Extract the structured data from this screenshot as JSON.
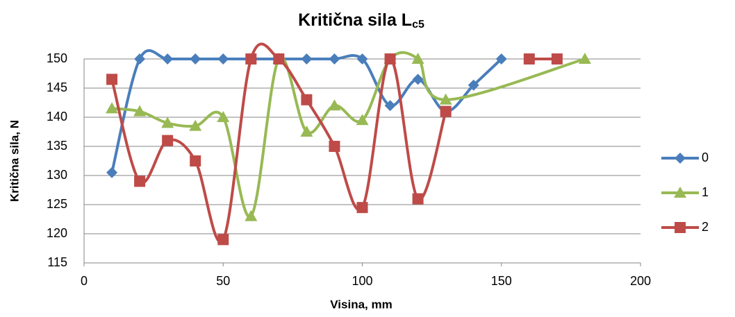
{
  "chart_data": {
    "type": "scatter-smooth",
    "title": {
      "text": "Kritična sila L",
      "subscript": "c5"
    },
    "x_label": "Visina, mm",
    "y_label": "Kritična sila, N",
    "xlim": [
      0,
      200
    ],
    "xticks": [
      0,
      50,
      100,
      150,
      200
    ],
    "ylim": [
      115,
      150
    ],
    "yticks": [
      115,
      120,
      125,
      130,
      135,
      140,
      145,
      150
    ],
    "grid": true,
    "legend": "right",
    "series": [
      {
        "name": "0",
        "color": "#4a7ebb",
        "marker": "diamond",
        "x": [
          10,
          20,
          30,
          40,
          50,
          60,
          70,
          80,
          90,
          100,
          110,
          120,
          130,
          140,
          150
        ],
        "values": [
          130.5,
          150,
          150,
          150,
          150,
          150,
          150,
          150,
          150,
          150,
          142,
          146.5,
          141,
          145.5,
          150
        ]
      },
      {
        "name": "1",
        "color": "#98b954",
        "marker": "triangle",
        "x": [
          10,
          20,
          30,
          40,
          50,
          60,
          70,
          80,
          90,
          100,
          110,
          120,
          130,
          180
        ],
        "values": [
          141.5,
          141,
          139,
          138.5,
          140,
          123,
          150,
          137.5,
          142,
          139.5,
          150,
          150,
          143,
          150
        ]
      },
      {
        "name": "2",
        "color": "#be4b48",
        "marker": "square",
        "x": [
          10,
          20,
          30,
          40,
          50,
          60,
          70,
          80,
          90,
          100,
          110,
          120,
          130,
          140,
          160,
          170
        ],
        "values": [
          146.5,
          129,
          136,
          132.5,
          119,
          150,
          150,
          143,
          135,
          124.5,
          150,
          126,
          141,
          null,
          150,
          150
        ]
      }
    ]
  }
}
